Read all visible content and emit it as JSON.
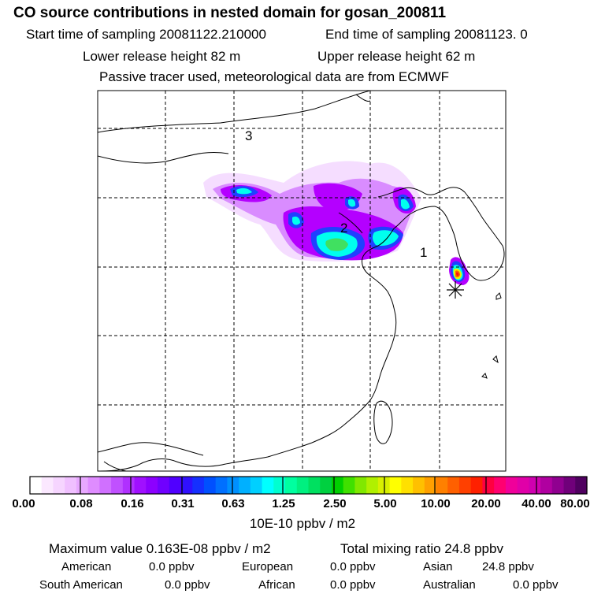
{
  "header": {
    "title": "CO  source contributions in nested domain for gosan_200811",
    "line2_start": "Start time of sampling 20081122.210000",
    "line2_end": "End time of sampling 20081123.     0",
    "line3_lower": "Lower release height   82 m",
    "line3_upper": "Upper release height   62 m",
    "line4": "Passive tracer used, meteorological data are from ECMWF"
  },
  "map": {
    "grid": "on",
    "labels": [
      {
        "text": "3"
      },
      {
        "text": "2"
      },
      {
        "text": "1"
      }
    ],
    "release_marker": "asterisk-icon",
    "colors": {
      "plume_low": "#e6a8ff",
      "plume_mid": "#b400ff",
      "plume_blue": "#2040ff",
      "plume_cyan": "#00ffee",
      "plume_green": "#30e070",
      "plume_yellow": "#f0f000",
      "plume_red": "#ff2010"
    }
  },
  "colorbar": {
    "ticks": [
      "0.00",
      "0.08",
      "0.16",
      "0.31",
      "0.63",
      "1.25",
      "2.50",
      "5.00",
      "10.00",
      "20.00",
      "40.00",
      "80.00"
    ],
    "unit": "10E-10 ppbv / m2",
    "colors": [
      "#ffffff",
      "#fbe8ff",
      "#f6d5ff",
      "#f0c0ff",
      "#e8a8ff",
      "#df8cff",
      "#d070ff",
      "#c050ff",
      "#b030ff",
      "#a010ff",
      "#8c00ff",
      "#7000ff",
      "#5000ff",
      "#3010ff",
      "#1530ff",
      "#0050ff",
      "#0070ff",
      "#0090ff",
      "#00b0ff",
      "#00d0ff",
      "#00ffff",
      "#00ffd0",
      "#00ffa0",
      "#00f080",
      "#00e060",
      "#00d040",
      "#00d000",
      "#40e000",
      "#80e800",
      "#b0f000",
      "#d8f000",
      "#ffff00",
      "#ffe000",
      "#ffc000",
      "#ffa000",
      "#ff8000",
      "#ff6000",
      "#ff4000",
      "#ff2000",
      "#ff0040",
      "#ff0070",
      "#f0009a",
      "#e000a8",
      "#d000b0",
      "#b000a0",
      "#900090",
      "#70007a",
      "#500060"
    ]
  },
  "stats": {
    "max_value": "Maximum value  0.163E-08 ppbv / m2",
    "total_mixing": "Total mixing ratio       24.8 ppbv",
    "regions": [
      {
        "name": "American",
        "value": "0.0 ppbv"
      },
      {
        "name": "European",
        "value": "0.0 ppbv"
      },
      {
        "name": "Asian",
        "value": "24.8 ppbv"
      },
      {
        "name": "South American",
        "value": "0.0 ppbv"
      },
      {
        "name": "African",
        "value": "0.0 ppbv"
      },
      {
        "name": "Australian",
        "value": "0.0 ppbv"
      }
    ]
  }
}
